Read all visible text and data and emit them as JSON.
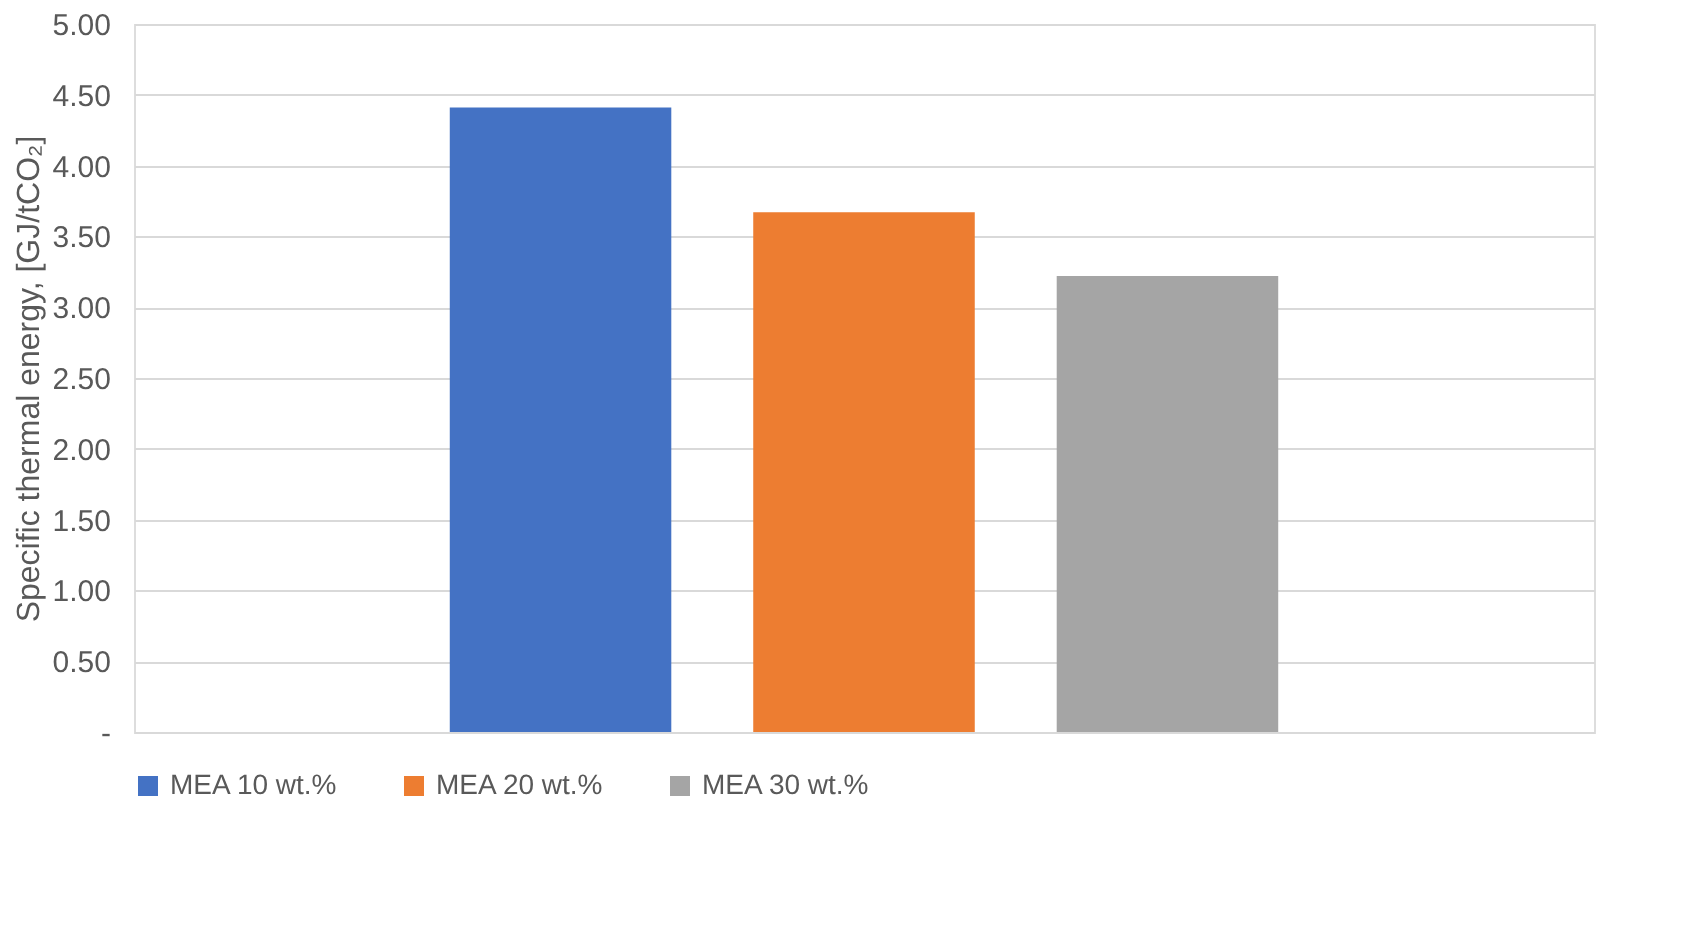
{
  "chart_data": {
    "type": "bar",
    "categories": [
      null
    ],
    "series": [
      {
        "name": "MEA 10 wt.%",
        "color": "#4472c4",
        "values": [
          4.41
        ]
      },
      {
        "name": "MEA 20 wt.%",
        "color": "#ed7d31",
        "values": [
          3.67
        ]
      },
      {
        "name": "MEA 30 wt.%",
        "color": "#a5a5a5",
        "values": [
          3.22
        ]
      }
    ],
    "ylabel": "Specific thermal energy, [GJ/tCO₂]",
    "ylim": [
      0,
      5
    ],
    "yticks": [
      {
        "value": 0,
        "label": "-"
      },
      {
        "value": 0.5,
        "label": "0.50"
      },
      {
        "value": 1,
        "label": "1.00"
      },
      {
        "value": 1.5,
        "label": "1.50"
      },
      {
        "value": 2,
        "label": "2.00"
      },
      {
        "value": 2.5,
        "label": "2.50"
      },
      {
        "value": 3,
        "label": "3.00"
      },
      {
        "value": 3.5,
        "label": "3.50"
      },
      {
        "value": 4,
        "label": "4.00"
      },
      {
        "value": 4.5,
        "label": "4.50"
      },
      {
        "value": 5,
        "label": "5.00"
      }
    ],
    "grid": "y",
    "legend": "bottom"
  }
}
